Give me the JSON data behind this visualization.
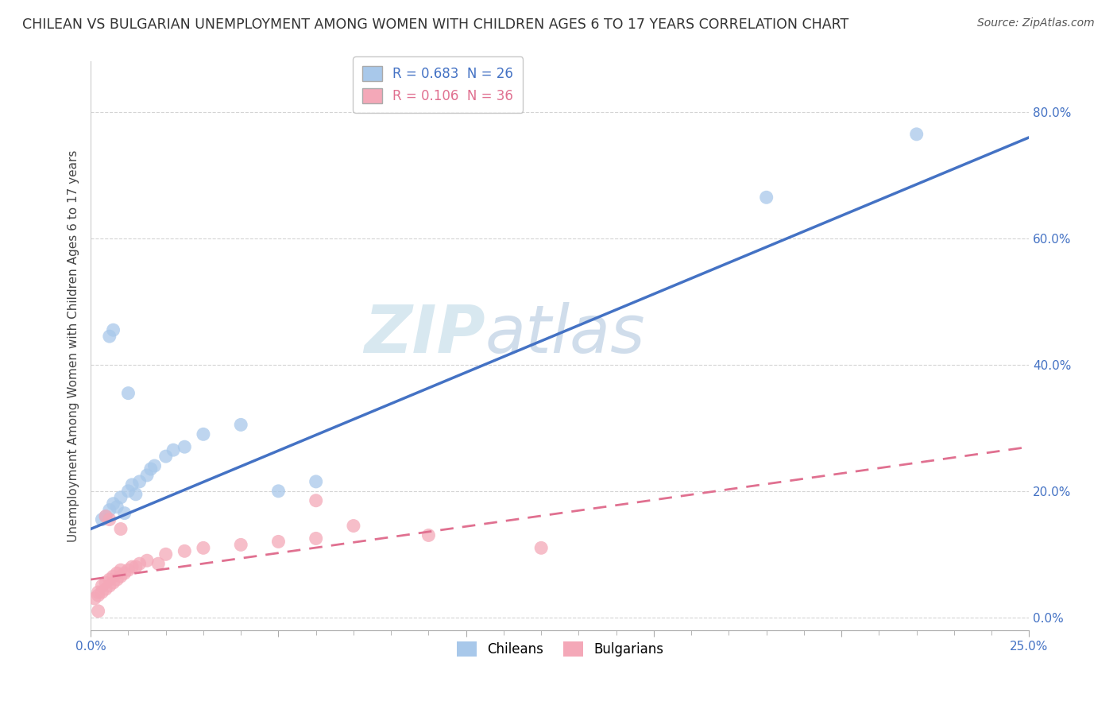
{
  "title": "CHILEAN VS BULGARIAN UNEMPLOYMENT AMONG WOMEN WITH CHILDREN AGES 6 TO 17 YEARS CORRELATION CHART",
  "source": "Source: ZipAtlas.com",
  "ylabel": "Unemployment Among Women with Children Ages 6 to 17 years",
  "xlim": [
    0.0,
    0.25
  ],
  "ylim": [
    -0.02,
    0.88
  ],
  "legend_entries": [
    {
      "label": "R = 0.683  N = 26",
      "color": "#a8c8ea"
    },
    {
      "label": "R = 0.106  N = 36",
      "color": "#f4a8b8"
    }
  ],
  "chilean_scatter": [
    [
      0.003,
      0.155
    ],
    [
      0.004,
      0.16
    ],
    [
      0.005,
      0.17
    ],
    [
      0.006,
      0.18
    ],
    [
      0.007,
      0.175
    ],
    [
      0.008,
      0.19
    ],
    [
      0.009,
      0.165
    ],
    [
      0.01,
      0.2
    ],
    [
      0.011,
      0.21
    ],
    [
      0.012,
      0.195
    ],
    [
      0.013,
      0.215
    ],
    [
      0.015,
      0.225
    ],
    [
      0.016,
      0.235
    ],
    [
      0.017,
      0.24
    ],
    [
      0.02,
      0.255
    ],
    [
      0.022,
      0.265
    ],
    [
      0.025,
      0.27
    ],
    [
      0.03,
      0.29
    ],
    [
      0.04,
      0.305
    ],
    [
      0.05,
      0.2
    ],
    [
      0.06,
      0.215
    ],
    [
      0.01,
      0.355
    ],
    [
      0.005,
      0.445
    ],
    [
      0.006,
      0.455
    ],
    [
      0.18,
      0.665
    ],
    [
      0.22,
      0.765
    ]
  ],
  "bulgarian_scatter": [
    [
      0.001,
      0.03
    ],
    [
      0.002,
      0.035
    ],
    [
      0.002,
      0.04
    ],
    [
      0.003,
      0.04
    ],
    [
      0.003,
      0.05
    ],
    [
      0.004,
      0.045
    ],
    [
      0.004,
      0.055
    ],
    [
      0.005,
      0.05
    ],
    [
      0.005,
      0.06
    ],
    [
      0.006,
      0.055
    ],
    [
      0.006,
      0.065
    ],
    [
      0.007,
      0.06
    ],
    [
      0.007,
      0.07
    ],
    [
      0.008,
      0.065
    ],
    [
      0.008,
      0.075
    ],
    [
      0.009,
      0.07
    ],
    [
      0.01,
      0.075
    ],
    [
      0.011,
      0.08
    ],
    [
      0.012,
      0.08
    ],
    [
      0.013,
      0.085
    ],
    [
      0.015,
      0.09
    ],
    [
      0.018,
      0.085
    ],
    [
      0.02,
      0.1
    ],
    [
      0.025,
      0.105
    ],
    [
      0.03,
      0.11
    ],
    [
      0.04,
      0.115
    ],
    [
      0.05,
      0.12
    ],
    [
      0.06,
      0.125
    ],
    [
      0.07,
      0.145
    ],
    [
      0.004,
      0.16
    ],
    [
      0.005,
      0.155
    ],
    [
      0.008,
      0.14
    ],
    [
      0.06,
      0.185
    ],
    [
      0.002,
      0.01
    ],
    [
      0.09,
      0.13
    ],
    [
      0.12,
      0.11
    ]
  ],
  "chilean_color": "#a8c8ea",
  "bulgarian_color": "#f4a8b8",
  "chilean_line_color": "#4472c4",
  "bulgarian_line_color": "#e07090",
  "background_color": "#ffffff",
  "grid_color": "#d0d0d0",
  "title_fontsize": 12.5,
  "label_fontsize": 11,
  "tick_fontsize": 11,
  "legend_fontsize": 12,
  "source_fontsize": 10
}
